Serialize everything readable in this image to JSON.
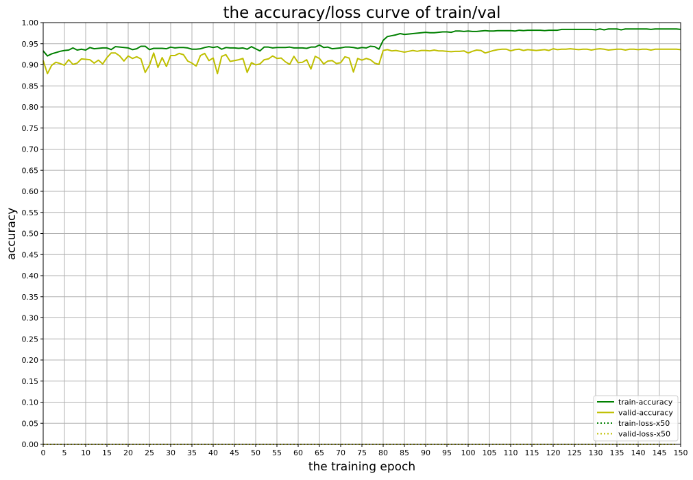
{
  "chart_data": {
    "type": "line",
    "title": "the accuracy/loss curve of train/val",
    "xlabel": "the training epoch",
    "ylabel": "accuracy",
    "xlim": [
      0,
      150
    ],
    "ylim": [
      0,
      1.0
    ],
    "xticks": [
      0,
      5,
      10,
      15,
      20,
      25,
      30,
      35,
      40,
      45,
      50,
      55,
      60,
      65,
      70,
      75,
      80,
      85,
      90,
      95,
      100,
      105,
      110,
      115,
      120,
      125,
      130,
      135,
      140,
      145,
      150
    ],
    "yticks": [
      0,
      0.05,
      0.1,
      0.15,
      0.2,
      0.25,
      0.3,
      0.35,
      0.4,
      0.45,
      0.5,
      0.55,
      0.6,
      0.65,
      0.7,
      0.75,
      0.8,
      0.85,
      0.9,
      0.95,
      1.0
    ],
    "grid": true,
    "legend_position": "lower-right",
    "series": [
      {
        "name": "train-accuracy",
        "color": "#008000",
        "style": "solid",
        "values": [
          0.933,
          0.921,
          0.926,
          0.929,
          0.932,
          0.934,
          0.935,
          0.94,
          0.935,
          0.937,
          0.935,
          0.941,
          0.938,
          0.939,
          0.94,
          0.94,
          0.936,
          0.943,
          0.942,
          0.941,
          0.94,
          0.936,
          0.938,
          0.944,
          0.944,
          0.936,
          0.939,
          0.939,
          0.939,
          0.938,
          0.942,
          0.94,
          0.941,
          0.941,
          0.94,
          0.937,
          0.937,
          0.938,
          0.941,
          0.943,
          0.941,
          0.943,
          0.937,
          0.941,
          0.94,
          0.94,
          0.939,
          0.94,
          0.937,
          0.943,
          0.938,
          0.933,
          0.942,
          0.942,
          0.94,
          0.941,
          0.941,
          0.941,
          0.942,
          0.94,
          0.94,
          0.94,
          0.939,
          0.942,
          0.942,
          0.947,
          0.941,
          0.942,
          0.938,
          0.939,
          0.94,
          0.942,
          0.942,
          0.941,
          0.939,
          0.941,
          0.94,
          0.944,
          0.943,
          0.937,
          0.958,
          0.967,
          0.969,
          0.971,
          0.974,
          0.972,
          0.973,
          0.974,
          0.975,
          0.976,
          0.977,
          0.976,
          0.976,
          0.977,
          0.978,
          0.978,
          0.977,
          0.98,
          0.98,
          0.979,
          0.98,
          0.979,
          0.979,
          0.98,
          0.981,
          0.98,
          0.98,
          0.981,
          0.981,
          0.981,
          0.981,
          0.98,
          0.982,
          0.981,
          0.982,
          0.982,
          0.982,
          0.982,
          0.981,
          0.982,
          0.982,
          0.982,
          0.984,
          0.984,
          0.984,
          0.984,
          0.984,
          0.984,
          0.984,
          0.984,
          0.983,
          0.985,
          0.983,
          0.985,
          0.985,
          0.985,
          0.983,
          0.985,
          0.985,
          0.985,
          0.985,
          0.985,
          0.985,
          0.984,
          0.985,
          0.985,
          0.985,
          0.985,
          0.985,
          0.985,
          0.984
        ]
      },
      {
        "name": "valid-accuracy",
        "color": "#bfbf00",
        "style": "solid",
        "values": [
          0.91,
          0.879,
          0.899,
          0.906,
          0.903,
          0.899,
          0.912,
          0.901,
          0.904,
          0.914,
          0.913,
          0.912,
          0.904,
          0.911,
          0.902,
          0.917,
          0.928,
          0.928,
          0.921,
          0.909,
          0.921,
          0.915,
          0.919,
          0.914,
          0.882,
          0.899,
          0.928,
          0.894,
          0.917,
          0.896,
          0.922,
          0.922,
          0.927,
          0.924,
          0.909,
          0.904,
          0.897,
          0.922,
          0.927,
          0.91,
          0.916,
          0.879,
          0.92,
          0.924,
          0.908,
          0.91,
          0.912,
          0.915,
          0.882,
          0.905,
          0.9,
          0.902,
          0.912,
          0.914,
          0.921,
          0.915,
          0.916,
          0.907,
          0.901,
          0.92,
          0.905,
          0.906,
          0.912,
          0.89,
          0.92,
          0.915,
          0.902,
          0.909,
          0.91,
          0.903,
          0.905,
          0.919,
          0.916,
          0.883,
          0.915,
          0.911,
          0.915,
          0.912,
          0.904,
          0.901,
          0.934,
          0.936,
          0.933,
          0.934,
          0.932,
          0.93,
          0.932,
          0.934,
          0.932,
          0.934,
          0.934,
          0.933,
          0.935,
          0.933,
          0.933,
          0.932,
          0.931,
          0.932,
          0.932,
          0.933,
          0.928,
          0.932,
          0.935,
          0.934,
          0.928,
          0.931,
          0.934,
          0.936,
          0.937,
          0.937,
          0.933,
          0.936,
          0.937,
          0.934,
          0.936,
          0.935,
          0.934,
          0.935,
          0.936,
          0.934,
          0.938,
          0.936,
          0.937,
          0.937,
          0.938,
          0.937,
          0.936,
          0.937,
          0.937,
          0.935,
          0.937,
          0.938,
          0.937,
          0.935,
          0.936,
          0.937,
          0.937,
          0.935,
          0.937,
          0.937,
          0.936,
          0.937,
          0.937,
          0.935,
          0.937,
          0.937,
          0.937,
          0.937,
          0.937,
          0.937,
          0.936
        ]
      },
      {
        "name": "train-loss-x50",
        "color": "#008000",
        "style": "dotted",
        "values_constant": 0.0
      },
      {
        "name": "valid-loss-x50",
        "color": "#bfbf00",
        "style": "dotted",
        "values_constant": 0.0
      }
    ]
  }
}
